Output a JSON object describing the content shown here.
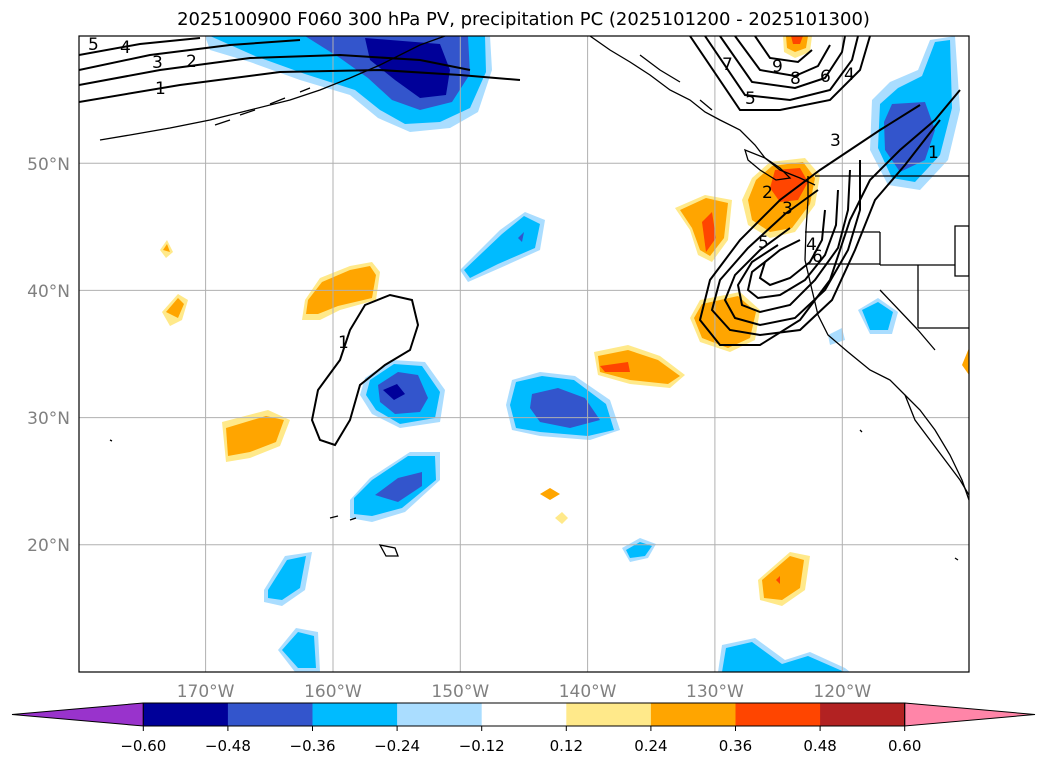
{
  "title": "2025100900 F060 300 hPa PV, precipitation PC (2025101200 - 2025101300)",
  "map": {
    "lon_range": [
      -180,
      -110
    ],
    "lat_range": [
      10,
      60
    ],
    "lat_ticks": [
      {
        "value": 20,
        "label": "20°N"
      },
      {
        "value": 30,
        "label": "30°N"
      },
      {
        "value": 40,
        "label": "40°N"
      },
      {
        "value": 50,
        "label": "50°N"
      }
    ],
    "lon_ticks": [
      {
        "value": -170,
        "label": "170°W"
      },
      {
        "value": -160,
        "label": "160°W"
      },
      {
        "value": -150,
        "label": "150°W"
      },
      {
        "value": -140,
        "label": "140°W"
      },
      {
        "value": -130,
        "label": "130°W"
      },
      {
        "value": -120,
        "label": "120°W"
      }
    ],
    "contour_labels": [
      "5",
      "4",
      "3",
      "2",
      "1",
      "1",
      "9",
      "8",
      "7",
      "6",
      "5",
      "4",
      "3",
      "1",
      "2",
      "3",
      "4",
      "5",
      "6"
    ]
  },
  "colorbar": {
    "levels": [
      "−0.60",
      "−0.48",
      "−0.36",
      "−0.24",
      "−0.12",
      "0.12",
      "0.24",
      "0.36",
      "0.48",
      "0.60"
    ],
    "colors": [
      "#9933cc",
      "#000099",
      "#3355cc",
      "#00bbff",
      "#aaddff",
      "#ffffff",
      "#ffe98a",
      "#ffa500",
      "#ff4500",
      "#b22222",
      "#ff85a8"
    ]
  }
}
